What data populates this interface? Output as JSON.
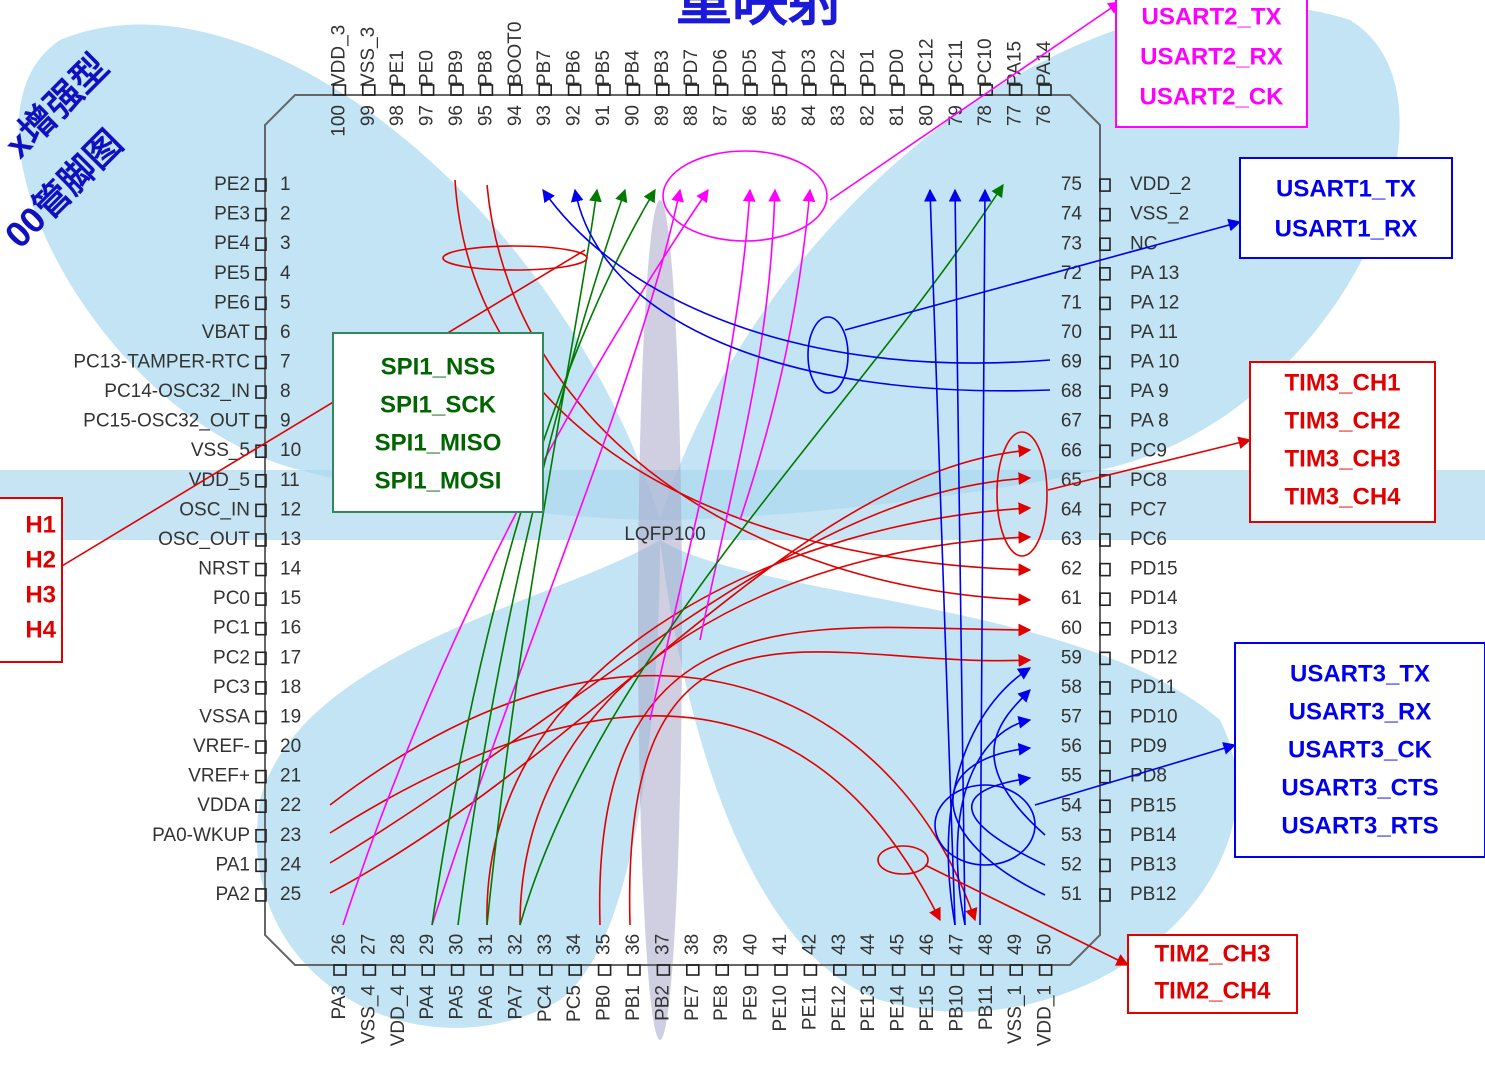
{
  "header": {
    "title": "重映射",
    "corner_lines": [
      "x增强型",
      "00管脚图"
    ]
  },
  "package": "LQFP100",
  "left_pins": [
    {
      "number": 1,
      "name": "PE2"
    },
    {
      "number": 2,
      "name": "PE3"
    },
    {
      "number": 3,
      "name": "PE4"
    },
    {
      "number": 4,
      "name": "PE5"
    },
    {
      "number": 5,
      "name": "PE6"
    },
    {
      "number": 6,
      "name": "VBAT"
    },
    {
      "number": 7,
      "name": "PC13-TAMPER-RTC"
    },
    {
      "number": 8,
      "name": "PC14-OSC32_IN"
    },
    {
      "number": 9,
      "name": "PC15-OSC32_OUT"
    },
    {
      "number": 10,
      "name": "VSS_5"
    },
    {
      "number": 11,
      "name": "VDD_5"
    },
    {
      "number": 12,
      "name": "OSC_IN"
    },
    {
      "number": 13,
      "name": "OSC_OUT"
    },
    {
      "number": 14,
      "name": "NRST"
    },
    {
      "number": 15,
      "name": "PC0"
    },
    {
      "number": 16,
      "name": "PC1"
    },
    {
      "number": 17,
      "name": "PC2"
    },
    {
      "number": 18,
      "name": "PC3"
    },
    {
      "number": 19,
      "name": "VSSA"
    },
    {
      "number": 20,
      "name": "VREF-"
    },
    {
      "number": 21,
      "name": "VREF+"
    },
    {
      "number": 22,
      "name": "VDDA"
    },
    {
      "number": 23,
      "name": "PA0-WKUP"
    },
    {
      "number": 24,
      "name": "PA1"
    },
    {
      "number": 25,
      "name": "PA2"
    }
  ],
  "bottom_pins": [
    {
      "number": 26,
      "name": "PA3"
    },
    {
      "number": 27,
      "name": "VSS_4"
    },
    {
      "number": 28,
      "name": "VDD_4"
    },
    {
      "number": 29,
      "name": "PA4"
    },
    {
      "number": 30,
      "name": "PA5"
    },
    {
      "number": 31,
      "name": "PA6"
    },
    {
      "number": 32,
      "name": "PA7"
    },
    {
      "number": 33,
      "name": "PC4"
    },
    {
      "number": 34,
      "name": "PC5"
    },
    {
      "number": 35,
      "name": "PB0"
    },
    {
      "number": 36,
      "name": "PB1"
    },
    {
      "number": 37,
      "name": "PB2"
    },
    {
      "number": 38,
      "name": "PE7"
    },
    {
      "number": 39,
      "name": "PE8"
    },
    {
      "number": 40,
      "name": "PE9"
    },
    {
      "number": 41,
      "name": "PE10"
    },
    {
      "number": 42,
      "name": "PE11"
    },
    {
      "number": 43,
      "name": "PE12"
    },
    {
      "number": 44,
      "name": "PE13"
    },
    {
      "number": 45,
      "name": "PE14"
    },
    {
      "number": 46,
      "name": "PE15"
    },
    {
      "number": 47,
      "name": "PB10"
    },
    {
      "number": 48,
      "name": "PB11"
    },
    {
      "number": 49,
      "name": "VSS_1"
    },
    {
      "number": 50,
      "name": "VDD_1"
    }
  ],
  "right_pins": [
    {
      "number": 51,
      "name": "PB12"
    },
    {
      "number": 52,
      "name": "PB13"
    },
    {
      "number": 53,
      "name": "PB14"
    },
    {
      "number": 54,
      "name": "PB15"
    },
    {
      "number": 55,
      "name": "PD8"
    },
    {
      "number": 56,
      "name": "PD9"
    },
    {
      "number": 57,
      "name": "PD10"
    },
    {
      "number": 58,
      "name": "PD11"
    },
    {
      "number": 59,
      "name": "PD12"
    },
    {
      "number": 60,
      "name": "PD13"
    },
    {
      "number": 61,
      "name": "PD14"
    },
    {
      "number": 62,
      "name": "PD15"
    },
    {
      "number": 63,
      "name": "PC6"
    },
    {
      "number": 64,
      "name": "PC7"
    },
    {
      "number": 65,
      "name": "PC8"
    },
    {
      "number": 66,
      "name": "PC9"
    },
    {
      "number": 67,
      "name": "PA 8"
    },
    {
      "number": 68,
      "name": "PA 9"
    },
    {
      "number": 69,
      "name": "PA 10"
    },
    {
      "number": 70,
      "name": "PA 11"
    },
    {
      "number": 71,
      "name": "PA 12"
    },
    {
      "number": 72,
      "name": "PA 13"
    },
    {
      "number": 73,
      "name": "NC"
    },
    {
      "number": 74,
      "name": "VSS_2"
    },
    {
      "number": 75,
      "name": "VDD_2"
    }
  ],
  "top_pins": [
    {
      "number": 76,
      "name": "PA14"
    },
    {
      "number": 77,
      "name": "PA15"
    },
    {
      "number": 78,
      "name": "PC10"
    },
    {
      "number": 79,
      "name": "PC11"
    },
    {
      "number": 80,
      "name": "PC12"
    },
    {
      "number": 81,
      "name": "PD0"
    },
    {
      "number": 82,
      "name": "PD1"
    },
    {
      "number": 83,
      "name": "PD2"
    },
    {
      "number": 84,
      "name": "PD3"
    },
    {
      "number": 85,
      "name": "PD4"
    },
    {
      "number": 86,
      "name": "PD5"
    },
    {
      "number": 87,
      "name": "PD6"
    },
    {
      "number": 88,
      "name": "PD7"
    },
    {
      "number": 89,
      "name": "PB3"
    },
    {
      "number": 90,
      "name": "PB4"
    },
    {
      "number": 91,
      "name": "PB5"
    },
    {
      "number": 92,
      "name": "PB6"
    },
    {
      "number": 93,
      "name": "PB7"
    },
    {
      "number": 94,
      "name": "BOOT0"
    },
    {
      "number": 95,
      "name": "PB8"
    },
    {
      "number": 96,
      "name": "PB9"
    },
    {
      "number": 97,
      "name": "PE0"
    },
    {
      "number": 98,
      "name": "PE1"
    },
    {
      "number": 99,
      "name": "VSS_3"
    },
    {
      "number": 100,
      "name": "VDD_3"
    }
  ],
  "boxes": [
    {
      "lines": [
        "USART2_TX",
        "USART2_RX",
        "USART2_CK"
      ]
    },
    {
      "lines": [
        "USART1_TX",
        "USART1_RX"
      ]
    },
    {
      "lines": [
        "TIM3_CH1",
        "TIM3_CH2",
        "TIM3_CH3",
        "TIM3_CH4"
      ]
    },
    {
      "lines": [
        "USART3_TX",
        "USART3_RX",
        "USART3_CK",
        "USART3_CTS",
        "USART3_RTS"
      ]
    },
    {
      "lines": [
        "TIM2_CH3",
        "TIM2_CH4"
      ]
    },
    {
      "lines": [
        "SPI1_NSS",
        "SPI1_SCK",
        "SPI1_MISO",
        "SPI1_MOSI"
      ]
    },
    {
      "lines": [
        "H1",
        "H2",
        "H3",
        "H4"
      ]
    }
  ]
}
